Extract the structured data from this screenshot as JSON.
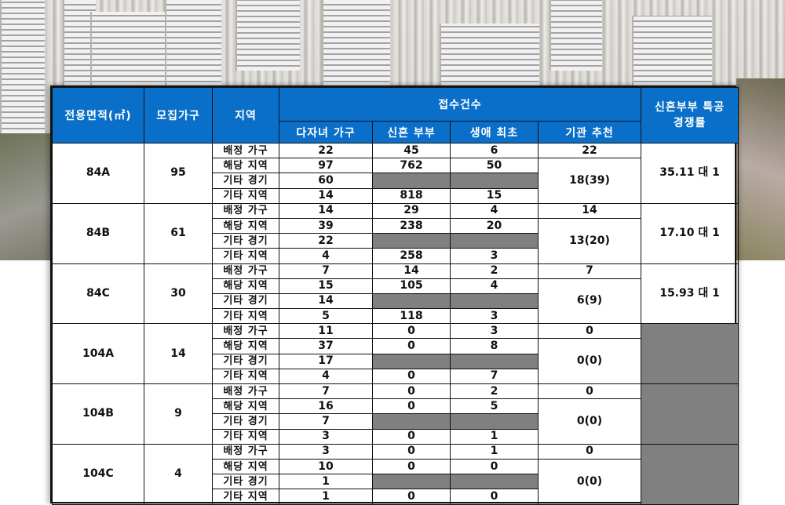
{
  "background": {
    "description": "aerial photo of apartment complex"
  },
  "table": {
    "headers": {
      "area": "전용면적(㎡)",
      "households": "모집가구",
      "region": "지역",
      "applications": "접수건수",
      "sub": [
        "다자녀 가구",
        "신혼 부부",
        "생애 최초",
        "기관 추천"
      ],
      "competition": "신혼부부 특공 경쟁률"
    },
    "row_labels": [
      "배정 가구",
      "해당 지역",
      "기타 경기",
      "기타 지역"
    ],
    "groups": [
      {
        "area": "84A",
        "households": "95",
        "multi": [
          "22",
          "97",
          "60",
          "14"
        ],
        "newlywed": [
          "45",
          "762",
          "",
          "818"
        ],
        "first": [
          "6",
          "50",
          "",
          "15"
        ],
        "agency_alloc": "22",
        "agency_apply": "18(39)",
        "competition": "35.11 대 1"
      },
      {
        "area": "84B",
        "households": "61",
        "multi": [
          "14",
          "39",
          "22",
          "4"
        ],
        "newlywed": [
          "29",
          "238",
          "",
          "258"
        ],
        "first": [
          "4",
          "20",
          "",
          "3"
        ],
        "agency_alloc": "14",
        "agency_apply": "13(20)",
        "competition": "17.10 대 1"
      },
      {
        "area": "84C",
        "households": "30",
        "multi": [
          "7",
          "15",
          "14",
          "5"
        ],
        "newlywed": [
          "14",
          "105",
          "",
          "118"
        ],
        "first": [
          "2",
          "4",
          "",
          "3"
        ],
        "agency_alloc": "7",
        "agency_apply": "6(9)",
        "competition": "15.93 대 1"
      },
      {
        "area": "104A",
        "households": "14",
        "multi": [
          "11",
          "37",
          "17",
          "4"
        ],
        "newlywed": [
          "0",
          "0",
          "",
          "0"
        ],
        "first": [
          "3",
          "8",
          "",
          "7"
        ],
        "agency_alloc": "0",
        "agency_apply": "0(0)",
        "competition": ""
      },
      {
        "area": "104B",
        "households": "9",
        "multi": [
          "7",
          "16",
          "7",
          "3"
        ],
        "newlywed": [
          "0",
          "0",
          "",
          "0"
        ],
        "first": [
          "2",
          "5",
          "",
          "1"
        ],
        "agency_alloc": "0",
        "agency_apply": "0(0)",
        "competition": ""
      },
      {
        "area": "104C",
        "households": "4",
        "multi": [
          "3",
          "10",
          "1",
          "1"
        ],
        "newlywed": [
          "0",
          "0",
          "",
          "0"
        ],
        "first": [
          "1",
          "0",
          "",
          "0"
        ],
        "agency_alloc": "0",
        "agency_apply": "0(0)",
        "competition": ""
      }
    ]
  },
  "colors": {
    "header_bg": "#0a6fc9",
    "header_text": "#ffffff",
    "blank_cell": "#808080",
    "border": "#111111"
  }
}
